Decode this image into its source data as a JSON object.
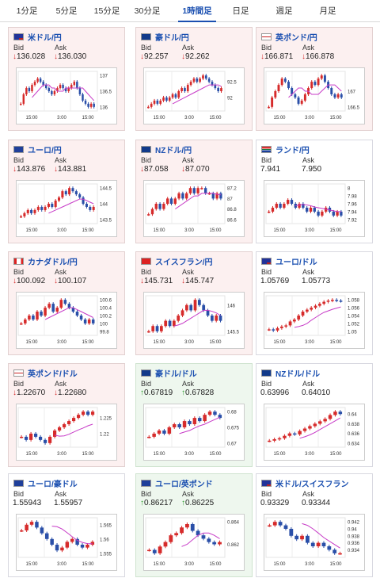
{
  "tabs": [
    "1分足",
    "5分足",
    "15分足",
    "30分足",
    "1時間足",
    "日足",
    "週足",
    "月足"
  ],
  "active_tab": 4,
  "cards": [
    {
      "name": "米ドル/円",
      "flag": "us-flag",
      "bid": "136.028",
      "ask": "136.030",
      "dir": "down",
      "ticks": [
        "137",
        "136.5",
        "136"
      ],
      "xticks": [
        "15:00",
        "3:00",
        "15:00"
      ],
      "closes": [
        136.1,
        136.4,
        136.6,
        136.5,
        136.7,
        136.8,
        136.9,
        136.8,
        136.7,
        136.6,
        136.5,
        136.4,
        136.5,
        136.6,
        136.7,
        136.6,
        136.5,
        136.6,
        136.7,
        136.8,
        136.6,
        136.4,
        136.2,
        136.1,
        136.0,
        136.1,
        136.0
      ],
      "ma": [
        136.3,
        136.4,
        136.5,
        136.6,
        136.7,
        136.7,
        136.7,
        136.6,
        136.6,
        136.5,
        136.5,
        136.5,
        136.6,
        136.6,
        136.6,
        136.6,
        136.6,
        136.6,
        136.6,
        136.5,
        136.4,
        136.3,
        136.2
      ]
    },
    {
      "name": "豪ドル/円",
      "flag": "au-flag",
      "bid": "92.257",
      "ask": "92.262",
      "dir": "down",
      "ticks": [
        "92.5",
        "92"
      ],
      "xticks": [
        "15:00",
        "3:00",
        "15:00"
      ],
      "closes": [
        91.7,
        91.8,
        91.9,
        91.8,
        91.9,
        92.0,
        91.9,
        92.0,
        92.1,
        92.0,
        92.2,
        92.3,
        92.2,
        92.4,
        92.5,
        92.6,
        92.5,
        92.6,
        92.7,
        92.6,
        92.5,
        92.4,
        92.3,
        92.2,
        92.3
      ],
      "ma": [
        91.8,
        91.85,
        91.9,
        91.95,
        92.0,
        92.05,
        92.1,
        92.15,
        92.2,
        92.25,
        92.3,
        92.35,
        92.4,
        92.4,
        92.4,
        92.4,
        92.35
      ]
    },
    {
      "name": "英ポンド/円",
      "flag": "gb-flag",
      "bid": "166.871",
      "ask": "166.878",
      "dir": "down",
      "ticks": [
        "167",
        "166.5"
      ],
      "xticks": [
        "15:00",
        "3:00",
        "15:00"
      ],
      "closes": [
        166.5,
        166.8,
        167.0,
        167.2,
        167.4,
        167.3,
        167.1,
        166.9,
        166.8,
        166.6,
        166.7,
        166.9,
        167.1,
        167.3,
        167.2,
        167.4,
        167.5,
        167.3,
        167.1,
        166.9,
        166.8,
        166.9,
        166.8
      ],
      "ma": [
        166.8,
        166.9,
        167.0,
        167.1,
        167.1,
        167.0,
        167.0,
        166.9,
        166.9,
        166.9,
        167.0,
        167.1,
        167.2,
        167.2,
        167.2,
        167.1,
        167.0
      ]
    },
    {
      "name": "ユーロ/円",
      "flag": "eu-flag",
      "bid": "143.876",
      "ask": "143.881",
      "dir": "down",
      "ticks": [
        "144.5",
        "144",
        "143.5"
      ],
      "xticks": [
        "15:00",
        "3:00",
        "15:00"
      ],
      "closes": [
        143.6,
        143.7,
        143.8,
        143.7,
        143.8,
        143.9,
        143.8,
        143.9,
        144.0,
        143.9,
        144.1,
        144.2,
        144.4,
        144.3,
        144.5,
        144.4,
        144.3,
        144.2,
        144.0,
        143.9,
        143.8,
        143.9
      ],
      "ma": [
        143.7,
        143.75,
        143.8,
        143.85,
        143.9,
        143.95,
        144.0,
        144.05,
        144.1,
        144.15,
        144.15,
        144.1,
        144.05,
        144.0
      ]
    },
    {
      "name": "NZドル/円",
      "flag": "nz-flag",
      "bid": "87.058",
      "ask": "87.070",
      "dir": "down",
      "ticks": [
        "87.2",
        "87",
        "86.8",
        "86.6"
      ],
      "xticks": [
        "15:00",
        "3:00",
        "15:00"
      ],
      "closes": [
        86.7,
        86.8,
        86.9,
        86.8,
        86.9,
        87.0,
        86.9,
        87.0,
        87.1,
        87.0,
        87.1,
        87.2,
        87.1,
        87.2,
        87.2,
        87.1,
        87.1,
        87.0,
        87.1,
        87.0
      ],
      "ma": [
        86.8,
        86.85,
        86.9,
        86.95,
        87.0,
        87.05,
        87.05,
        87.1,
        87.1,
        87.1,
        87.1,
        87.08,
        87.07
      ]
    },
    {
      "name": "ランド/円",
      "flag": "za-flag",
      "bid": "7.941",
      "ask": "7.950",
      "dir": "flat",
      "ticks": [
        "8",
        "7.98",
        "7.96",
        "7.94",
        "7.92"
      ],
      "xticks": [
        "15:00",
        "3:00",
        "15:00"
      ],
      "closes": [
        7.94,
        7.95,
        7.96,
        7.95,
        7.96,
        7.97,
        7.96,
        7.95,
        7.96,
        7.95,
        7.94,
        7.95,
        7.94,
        7.93,
        7.94,
        7.95,
        7.94,
        7.93,
        7.94,
        7.93
      ],
      "ma": [
        7.955,
        7.957,
        7.958,
        7.957,
        7.955,
        7.952,
        7.95,
        7.948,
        7.946,
        7.944,
        7.942,
        7.94,
        7.94
      ]
    },
    {
      "name": "カナダドル/円",
      "flag": "ca-flag",
      "bid": "100.092",
      "ask": "100.107",
      "dir": "down",
      "ticks": [
        "100.6",
        "100.4",
        "100.2",
        "100",
        "99.8"
      ],
      "xticks": [
        "15:00",
        "3:00",
        "15:00"
      ],
      "closes": [
        100.0,
        100.1,
        100.2,
        100.1,
        100.3,
        100.2,
        100.4,
        100.5,
        100.3,
        100.4,
        100.6,
        100.5,
        100.4,
        100.3,
        100.2,
        100.1,
        100.0,
        100.1,
        100.0
      ],
      "ma": [
        100.1,
        100.15,
        100.2,
        100.25,
        100.3,
        100.35,
        100.4,
        100.4,
        100.35,
        100.3,
        100.25,
        100.2,
        100.15
      ]
    },
    {
      "name": "スイスフラン/円",
      "flag": "ch-flag",
      "bid": "145.731",
      "ask": "145.747",
      "dir": "down",
      "ticks": [
        "146",
        "145.5"
      ],
      "xticks": [
        "15:00",
        "3:00",
        "15:00"
      ],
      "closes": [
        145.5,
        145.6,
        145.5,
        145.6,
        145.7,
        145.6,
        145.7,
        145.8,
        145.9,
        146.0,
        145.9,
        146.1,
        146.0,
        145.9,
        145.8,
        145.7,
        145.8,
        145.7
      ],
      "ma": [
        145.6,
        145.62,
        145.65,
        145.7,
        145.75,
        145.8,
        145.85,
        145.9,
        145.9,
        145.88,
        145.85,
        145.8
      ]
    },
    {
      "name": "ユーロ/ドル",
      "flag": "us-flag",
      "bid": "1.05769",
      "ask": "1.05773",
      "dir": "flat",
      "ticks": [
        "1.058",
        "1.056",
        "1.054",
        "1.052",
        "1.05"
      ],
      "xticks": [
        "15:00",
        "3:00",
        "15:00"
      ],
      "closes": [
        1.0505,
        1.0502,
        1.0508,
        1.0512,
        1.0515,
        1.0525,
        1.053,
        1.054,
        1.055,
        1.0555,
        1.056,
        1.0565,
        1.057,
        1.0575,
        1.0578,
        1.058,
        1.0578,
        1.0577
      ],
      "ma": [
        1.051,
        1.0512,
        1.0515,
        1.052,
        1.0528,
        1.0535,
        1.0542,
        1.0548,
        1.0552,
        1.0556,
        1.0559,
        1.0562
      ]
    },
    {
      "name": "英ポンド/ドル",
      "flag": "gb-flag",
      "bid": "1.22670",
      "ask": "1.22680",
      "dir": "down",
      "ticks": [
        "1.225",
        "1.22"
      ],
      "xticks": [
        "15:00",
        "3:00",
        "15:00"
      ],
      "closes": [
        1.219,
        1.218,
        1.22,
        1.219,
        1.218,
        1.217,
        1.219,
        1.221,
        1.222,
        1.223,
        1.224,
        1.225,
        1.226,
        1.227,
        1.226,
        1.227
      ],
      "ma": [
        1.2195,
        1.2192,
        1.2193,
        1.2198,
        1.2205,
        1.2212,
        1.2218,
        1.2225,
        1.223
      ]
    },
    {
      "name": "豪ドル/ドル",
      "flag": "au-flag",
      "bid": "0.67819",
      "ask": "0.67828",
      "dir": "up",
      "ticks": [
        "0.68",
        "0.675",
        "0.67"
      ],
      "xticks": [
        "15:00",
        "3:00",
        "15:00"
      ],
      "closes": [
        0.672,
        0.673,
        0.674,
        0.673,
        0.675,
        0.676,
        0.675,
        0.677,
        0.676,
        0.678,
        0.677,
        0.679,
        0.68,
        0.679,
        0.678
      ],
      "ma": [
        0.673,
        0.6735,
        0.674,
        0.6748,
        0.6755,
        0.676,
        0.6768,
        0.6775,
        0.6782
      ]
    },
    {
      "name": "NZドル/ドル",
      "flag": "nz-flag",
      "bid": "0.63996",
      "ask": "0.64010",
      "dir": "flat",
      "ticks": [
        "0.64",
        "0.638",
        "0.636",
        "0.634"
      ],
      "xticks": [
        "15:00",
        "3:00",
        "15:00"
      ],
      "closes": [
        0.6345,
        0.6348,
        0.635,
        0.6355,
        0.636,
        0.6358,
        0.6365,
        0.637,
        0.6375,
        0.638,
        0.6385,
        0.639,
        0.6398,
        0.6405,
        0.64
      ],
      "ma": [
        0.635,
        0.6353,
        0.6357,
        0.6362,
        0.6368,
        0.6374,
        0.638,
        0.6386,
        0.6392
      ]
    },
    {
      "name": "ユーロ/豪ドル",
      "flag": "eu-flag",
      "bid": "1.55943",
      "ask": "1.55957",
      "dir": "flat",
      "ticks": [
        "1.565",
        "1.56",
        "1.555"
      ],
      "xticks": [
        "15:00",
        "3:00",
        "15:00"
      ],
      "closes": [
        1.563,
        1.565,
        1.566,
        1.564,
        1.562,
        1.56,
        1.558,
        1.556,
        1.557,
        1.559,
        1.56,
        1.558,
        1.557,
        1.558,
        1.559
      ],
      "ma": [
        1.5645,
        1.5643,
        1.5635,
        1.5622,
        1.5608,
        1.5595,
        1.5588,
        1.5584,
        1.5583
      ]
    },
    {
      "name": "ユーロ/英ポンド",
      "flag": "eu-flag",
      "bid": "0.86217",
      "ask": "0.86225",
      "dir": "up",
      "ticks": [
        "0.864",
        "0.862"
      ],
      "xticks": [
        "15:00",
        "3:00",
        "15:00"
      ],
      "closes": [
        0.8615,
        0.8612,
        0.8618,
        0.8622,
        0.8628,
        0.863,
        0.8635,
        0.8638,
        0.8632,
        0.8628,
        0.8625,
        0.8622,
        0.862,
        0.8622
      ],
      "ma": [
        0.8618,
        0.862,
        0.8624,
        0.8628,
        0.863,
        0.863,
        0.8628,
        0.8625
      ]
    },
    {
      "name": "米ドル/スイスフラン",
      "flag": "us-flag",
      "bid": "0.93329",
      "ask": "0.93344",
      "dir": "flat",
      "ticks": [
        "0.942",
        "0.94",
        "0.938",
        "0.936",
        "0.934"
      ],
      "xticks": [
        "15:00",
        "3:00",
        "15:00"
      ],
      "closes": [
        0.941,
        0.942,
        0.941,
        0.94,
        0.938,
        0.937,
        0.938,
        0.936,
        0.935,
        0.936,
        0.935,
        0.934,
        0.933,
        0.933
      ],
      "ma": [
        0.9415,
        0.941,
        0.94,
        0.9388,
        0.9375,
        0.9365,
        0.9355,
        0.9345
      ]
    }
  ],
  "labels": {
    "bid": "Bid",
    "ask": "Ask"
  },
  "colors": {
    "up_candle": "#d62b2b",
    "down_candle": "#2a4fa8",
    "ma": "#c73bc7",
    "down_arrow": "#d62b2b",
    "up_arrow": "#2a9a2a"
  }
}
